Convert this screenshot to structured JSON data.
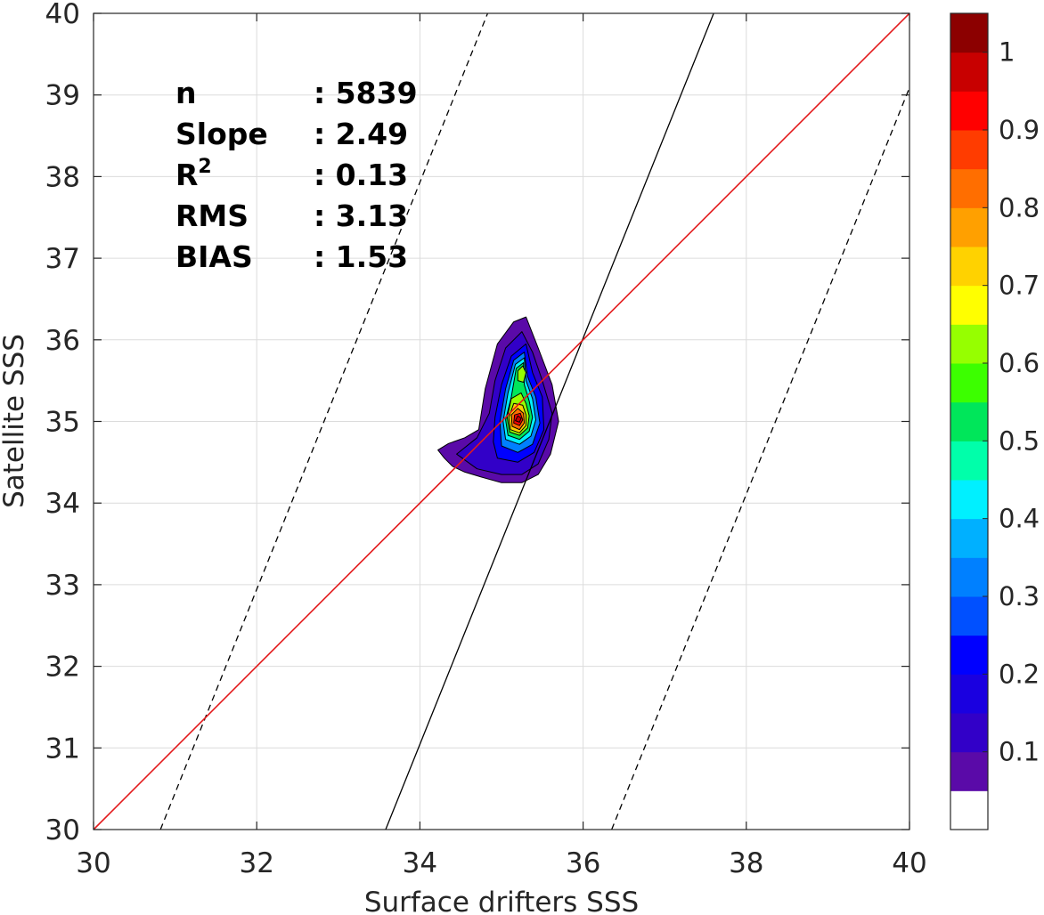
{
  "chart_data": {
    "type": "contour",
    "xlabel": "Surface drifters SSS",
    "ylabel": "Satellite SSS",
    "xlim": [
      30,
      40
    ],
    "ylim": [
      30,
      40
    ],
    "xticks": [
      "30",
      "32",
      "34",
      "36",
      "38",
      "40"
    ],
    "yticks": [
      "30",
      "31",
      "32",
      "33",
      "34",
      "35",
      "36",
      "37",
      "38",
      "39",
      "40"
    ],
    "grid": true,
    "stats": [
      {
        "label": "n",
        "value": ": 5839"
      },
      {
        "label": "Slope",
        "value": ": 2.49"
      },
      {
        "label": "R",
        "sup": "2",
        "value": ": 0.13"
      },
      {
        "label": "RMS",
        "value": ": 3.13"
      },
      {
        "label": "BIAS",
        "value": ": 1.53"
      }
    ],
    "lines": {
      "one_to_one": {
        "color": "#e31a1c",
        "points": [
          [
            30,
            30
          ],
          [
            40,
            40
          ]
        ]
      },
      "regression": {
        "color": "#000000",
        "style": "solid",
        "points": [
          [
            33.58,
            30
          ],
          [
            37.6,
            40
          ]
        ]
      },
      "regression_upper": {
        "color": "#000000",
        "style": "dashed",
        "points": [
          [
            30.82,
            30
          ],
          [
            34.83,
            40
          ]
        ]
      },
      "regression_lower": {
        "color": "#000000",
        "style": "dashed",
        "points": [
          [
            36.35,
            30
          ],
          [
            40,
            39.09
          ]
        ]
      }
    },
    "contours": [
      {
        "level": 0.05,
        "points": [
          [
            34.22,
            34.65
          ],
          [
            34.3,
            34.55
          ],
          [
            34.4,
            34.45
          ],
          [
            34.55,
            34.38
          ],
          [
            34.75,
            34.32
          ],
          [
            35.0,
            34.25
          ],
          [
            35.25,
            34.25
          ],
          [
            35.45,
            34.35
          ],
          [
            35.6,
            34.6
          ],
          [
            35.7,
            35.0
          ],
          [
            35.62,
            35.45
          ],
          [
            35.45,
            35.9
          ],
          [
            35.3,
            36.28
          ],
          [
            35.15,
            36.22
          ],
          [
            34.95,
            35.95
          ],
          [
            34.8,
            35.4
          ],
          [
            34.72,
            34.9
          ],
          [
            34.55,
            34.8
          ],
          [
            34.35,
            34.73
          ]
        ]
      },
      {
        "level": 0.1,
        "points": [
          [
            34.45,
            34.6
          ],
          [
            34.7,
            34.42
          ],
          [
            35.0,
            34.35
          ],
          [
            35.25,
            34.35
          ],
          [
            35.45,
            34.48
          ],
          [
            35.58,
            34.78
          ],
          [
            35.62,
            35.1
          ],
          [
            35.5,
            35.5
          ],
          [
            35.38,
            35.85
          ],
          [
            35.25,
            36.1
          ],
          [
            35.05,
            35.9
          ],
          [
            34.92,
            35.5
          ],
          [
            34.85,
            35.1
          ],
          [
            34.7,
            34.8
          ]
        ]
      },
      {
        "level": 0.2,
        "points": [
          [
            34.95,
            34.55
          ],
          [
            35.2,
            34.5
          ],
          [
            35.4,
            34.62
          ],
          [
            35.52,
            34.9
          ],
          [
            35.5,
            35.3
          ],
          [
            35.38,
            35.6
          ],
          [
            35.3,
            35.95
          ],
          [
            35.12,
            35.8
          ],
          [
            35.0,
            35.45
          ],
          [
            34.92,
            35.05
          ],
          [
            34.9,
            34.75
          ]
        ]
      },
      {
        "level": 0.3,
        "points": [
          [
            35.0,
            34.7
          ],
          [
            35.2,
            34.62
          ],
          [
            35.38,
            34.72
          ],
          [
            35.47,
            34.98
          ],
          [
            35.42,
            35.3
          ],
          [
            35.32,
            35.55
          ],
          [
            35.28,
            35.85
          ],
          [
            35.15,
            35.75
          ],
          [
            35.05,
            35.4
          ],
          [
            34.98,
            35.0
          ]
        ]
      },
      {
        "level": 0.4,
        "points": [
          [
            35.05,
            34.78
          ],
          [
            35.22,
            34.72
          ],
          [
            35.36,
            34.82
          ],
          [
            35.42,
            35.02
          ],
          [
            35.38,
            35.28
          ],
          [
            35.3,
            35.5
          ],
          [
            35.28,
            35.78
          ],
          [
            35.17,
            35.7
          ],
          [
            35.08,
            35.35
          ],
          [
            35.02,
            35.0
          ]
        ]
      },
      {
        "level": 0.5,
        "points": [
          [
            35.08,
            34.83
          ],
          [
            35.22,
            34.78
          ],
          [
            35.34,
            34.88
          ],
          [
            35.38,
            35.05
          ],
          [
            35.34,
            35.25
          ],
          [
            35.28,
            35.45
          ],
          [
            35.27,
            35.72
          ],
          [
            35.18,
            35.65
          ],
          [
            35.12,
            35.3
          ],
          [
            35.05,
            35.02
          ]
        ]
      },
      {
        "level": 0.6,
        "points": [
          [
            35.1,
            34.87
          ],
          [
            35.22,
            34.83
          ],
          [
            35.32,
            34.92
          ],
          [
            35.34,
            35.07
          ],
          [
            35.3,
            35.22
          ],
          [
            35.24,
            35.35
          ],
          [
            35.12,
            35.28
          ],
          [
            35.07,
            35.05
          ]
        ]
      },
      {
        "level": 0.6,
        "points": [
          [
            35.2,
            35.5
          ],
          [
            35.27,
            35.48
          ],
          [
            35.3,
            35.6
          ],
          [
            35.26,
            35.68
          ],
          [
            35.2,
            35.62
          ]
        ]
      },
      {
        "level": 0.7,
        "points": [
          [
            35.11,
            34.9
          ],
          [
            35.22,
            34.86
          ],
          [
            35.3,
            34.95
          ],
          [
            35.3,
            35.08
          ],
          [
            35.26,
            35.2
          ],
          [
            35.15,
            35.22
          ],
          [
            35.09,
            35.05
          ]
        ]
      },
      {
        "level": 0.8,
        "points": [
          [
            35.13,
            34.94
          ],
          [
            35.22,
            34.9
          ],
          [
            35.28,
            34.98
          ],
          [
            35.27,
            35.1
          ],
          [
            35.2,
            35.16
          ],
          [
            35.12,
            35.08
          ]
        ]
      },
      {
        "level": 0.9,
        "points": [
          [
            35.15,
            34.98
          ],
          [
            35.22,
            34.95
          ],
          [
            35.26,
            35.02
          ],
          [
            35.23,
            35.1
          ],
          [
            35.16,
            35.08
          ]
        ]
      },
      {
        "level": 0.97,
        "points": [
          [
            35.17,
            35.01
          ],
          [
            35.22,
            34.99
          ],
          [
            35.24,
            35.04
          ],
          [
            35.2,
            35.07
          ]
        ]
      }
    ],
    "colorbar": {
      "ticks": [
        "0.1",
        "0.2",
        "0.3",
        "0.4",
        "0.5",
        "0.6",
        "0.7",
        "0.8",
        "0.9",
        "1"
      ],
      "tick_values": [
        0.1,
        0.2,
        0.3,
        0.4,
        0.5,
        0.6,
        0.7,
        0.8,
        0.9,
        1.0
      ],
      "range": [
        0,
        1
      ],
      "bands": [
        {
          "from": 0.0,
          "to": 0.05,
          "color": "#ffffff"
        },
        {
          "from": 0.05,
          "to": 0.1,
          "color": "#5a0aa8"
        },
        {
          "from": 0.1,
          "to": 0.15,
          "color": "#3200c8"
        },
        {
          "from": 0.15,
          "to": 0.2,
          "color": "#1a00e0"
        },
        {
          "from": 0.2,
          "to": 0.25,
          "color": "#0000ff"
        },
        {
          "from": 0.25,
          "to": 0.3,
          "color": "#0050ff"
        },
        {
          "from": 0.3,
          "to": 0.35,
          "color": "#0080ff"
        },
        {
          "from": 0.35,
          "to": 0.4,
          "color": "#00b0ff"
        },
        {
          "from": 0.4,
          "to": 0.45,
          "color": "#00f0ff"
        },
        {
          "from": 0.45,
          "to": 0.5,
          "color": "#00ffaa"
        },
        {
          "from": 0.5,
          "to": 0.55,
          "color": "#00e65a"
        },
        {
          "from": 0.55,
          "to": 0.6,
          "color": "#3cff00"
        },
        {
          "from": 0.6,
          "to": 0.65,
          "color": "#96ff00"
        },
        {
          "from": 0.65,
          "to": 0.7,
          "color": "#ffff00"
        },
        {
          "from": 0.7,
          "to": 0.75,
          "color": "#ffd200"
        },
        {
          "from": 0.75,
          "to": 0.8,
          "color": "#ffa000"
        },
        {
          "from": 0.8,
          "to": 0.85,
          "color": "#ff6e00"
        },
        {
          "from": 0.85,
          "to": 0.9,
          "color": "#ff3c00"
        },
        {
          "from": 0.9,
          "to": 0.95,
          "color": "#ff0000"
        },
        {
          "from": 0.95,
          "to": 1.0,
          "color": "#c80000"
        },
        {
          "from": 1.0,
          "to": 1.05,
          "color": "#8c0000"
        }
      ]
    }
  }
}
